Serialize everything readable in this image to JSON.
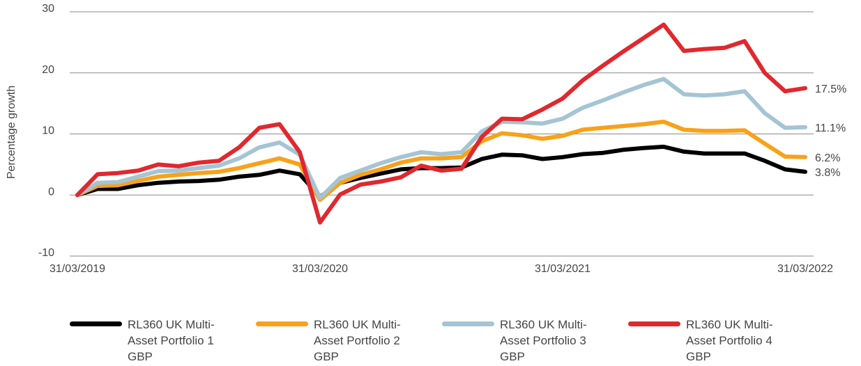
{
  "chart_data": {
    "type": "line",
    "y_label": "Percentage growth",
    "categories": [
      "31/03/2019",
      null,
      null,
      null,
      null,
      null,
      null,
      null,
      null,
      null,
      null,
      null,
      "31/03/2020",
      null,
      null,
      null,
      null,
      null,
      null,
      null,
      null,
      null,
      null,
      null,
      "31/03/2021",
      null,
      null,
      null,
      null,
      null,
      null,
      null,
      null,
      null,
      null,
      null,
      "31/03/2022"
    ],
    "ylim": [
      -10,
      30
    ],
    "yticks": [
      -10,
      0,
      10,
      20,
      30
    ],
    "grid": true,
    "series": [
      {
        "name": "RL360 UK Multi-Asset Portfolio 1 GBP",
        "color": "#000000",
        "values": [
          0,
          1.0,
          1.0,
          1.6,
          2.0,
          2.2,
          2.3,
          2.5,
          3.0,
          3.3,
          4.0,
          3.4,
          -0.3,
          2.0,
          2.8,
          3.5,
          4.2,
          4.4,
          4.4,
          4.5,
          5.9,
          6.6,
          6.5,
          5.9,
          6.2,
          6.7,
          6.9,
          7.4,
          7.7,
          7.9,
          7.1,
          6.8,
          6.8,
          6.8,
          5.6,
          4.2,
          3.8
        ],
        "value_labels": [
          null,
          null,
          null,
          null,
          null,
          null,
          null,
          null,
          null,
          null,
          null,
          null,
          null,
          null,
          null,
          null,
          null,
          null,
          null,
          null,
          null,
          null,
          null,
          null,
          null,
          null,
          null,
          null,
          null,
          null,
          null,
          null,
          null,
          null,
          null,
          null,
          "3.8%"
        ]
      },
      {
        "name": "RL360 UK Multi-Asset Portfolio 2 GBP",
        "color": "#f7a21b",
        "values": [
          0,
          1.5,
          1.6,
          2.3,
          3.0,
          3.3,
          3.6,
          3.8,
          4.4,
          5.2,
          6.0,
          5.0,
          -0.8,
          2.0,
          3.3,
          4.2,
          5.3,
          6.0,
          6.0,
          6.2,
          8.8,
          10.1,
          9.8,
          9.2,
          9.7,
          10.7,
          11.0,
          11.3,
          11.6,
          12.0,
          10.7,
          10.5,
          10.5,
          10.6,
          8.4,
          6.3,
          6.2
        ],
        "value_labels": [
          null,
          null,
          null,
          null,
          null,
          null,
          null,
          null,
          null,
          null,
          null,
          null,
          null,
          null,
          null,
          null,
          null,
          null,
          null,
          null,
          null,
          null,
          null,
          null,
          null,
          null,
          null,
          null,
          null,
          null,
          null,
          null,
          null,
          null,
          null,
          null,
          "6.2%"
        ]
      },
      {
        "name": "RL360 UK Multi-Asset Portfolio 3 GBP",
        "color": "#a5c4d4",
        "values": [
          0,
          2.0,
          2.1,
          3.0,
          3.9,
          4.0,
          4.4,
          4.8,
          6.0,
          7.8,
          8.6,
          6.6,
          -0.5,
          2.8,
          4.0,
          5.2,
          6.2,
          7.0,
          6.7,
          7.0,
          10.4,
          12.0,
          11.9,
          11.7,
          12.5,
          14.3,
          15.5,
          16.8,
          18.0,
          19.0,
          16.5,
          16.3,
          16.5,
          17.0,
          13.4,
          11.0,
          11.1
        ],
        "value_labels": [
          null,
          null,
          null,
          null,
          null,
          null,
          null,
          null,
          null,
          null,
          null,
          null,
          null,
          null,
          null,
          null,
          null,
          null,
          null,
          null,
          null,
          null,
          null,
          null,
          null,
          null,
          null,
          null,
          null,
          null,
          null,
          null,
          null,
          null,
          null,
          null,
          "11.1%"
        ]
      },
      {
        "name": "RL360 UK Multi-Asset Portfolio 4 GBP",
        "color": "#e0282e",
        "values": [
          0,
          3.4,
          3.6,
          4.0,
          5.0,
          4.7,
          5.3,
          5.6,
          7.8,
          11.0,
          11.6,
          7.0,
          -4.5,
          0.1,
          1.7,
          2.2,
          2.9,
          4.8,
          4.0,
          4.3,
          9.5,
          12.5,
          12.4,
          14.0,
          15.8,
          18.8,
          21.2,
          23.5,
          25.7,
          27.9,
          23.6,
          23.9,
          24.1,
          25.2,
          20.0,
          17.0,
          17.5
        ],
        "value_labels": [
          null,
          null,
          null,
          null,
          null,
          null,
          null,
          null,
          null,
          null,
          null,
          null,
          null,
          null,
          null,
          null,
          null,
          null,
          null,
          null,
          null,
          null,
          null,
          null,
          null,
          null,
          null,
          null,
          null,
          null,
          null,
          null,
          null,
          null,
          null,
          null,
          "17.5%"
        ]
      }
    ]
  }
}
